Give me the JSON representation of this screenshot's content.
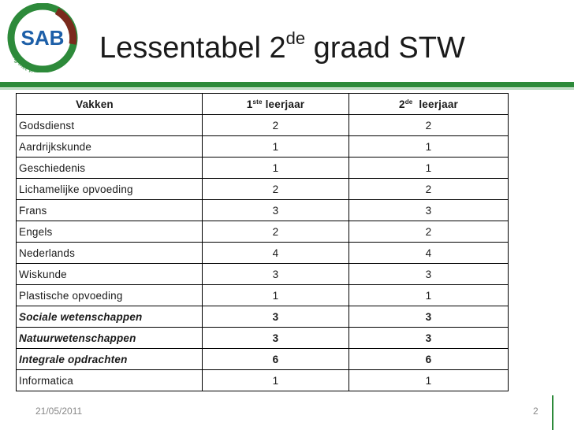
{
  "logo": {
    "text": "SAB",
    "slogan": "vorming met visie",
    "ring_color": "#2d8a3a",
    "accent_color": "#7a2a1c"
  },
  "title": {
    "main": "Lessentabel 2",
    "sup": "de",
    "rest": " graad STW"
  },
  "table": {
    "headers": [
      {
        "label": "Vakken"
      },
      {
        "pre": "1",
        "sup": "ste",
        "post": " leerjaar"
      },
      {
        "pre": "2",
        "sup": "de",
        "post": "  leerjaar"
      }
    ],
    "rows": [
      {
        "name": "Godsdienst",
        "y1": "2",
        "y2": "2"
      },
      {
        "name": "Aardrijkskunde",
        "y1": "1",
        "y2": "1"
      },
      {
        "name": "Geschiedenis",
        "y1": "1",
        "y2": "1"
      },
      {
        "name": "Lichamelijke opvoeding",
        "y1": "2",
        "y2": "2"
      },
      {
        "name": "Frans",
        "y1": "3",
        "y2": "3"
      },
      {
        "name": "Engels",
        "y1": "2",
        "y2": "2"
      },
      {
        "name": "Nederlands",
        "y1": "4",
        "y2": "4"
      },
      {
        "name": "Wiskunde",
        "y1": "3",
        "y2": "3"
      },
      {
        "name": "Plastische opvoeding",
        "y1": "1",
        "y2": "1"
      },
      {
        "name": "Sociale wetenschappen",
        "y1": "3",
        "y2": "3"
      },
      {
        "name": "Natuurwetenschappen",
        "y1": "3",
        "y2": "3"
      },
      {
        "name": "Integrale opdrachten",
        "y1": "6",
        "y2": "6"
      },
      {
        "name": "Informatica",
        "y1": "1",
        "y2": "1"
      }
    ]
  },
  "footer": {
    "date": "21/05/2011",
    "page": "2"
  }
}
